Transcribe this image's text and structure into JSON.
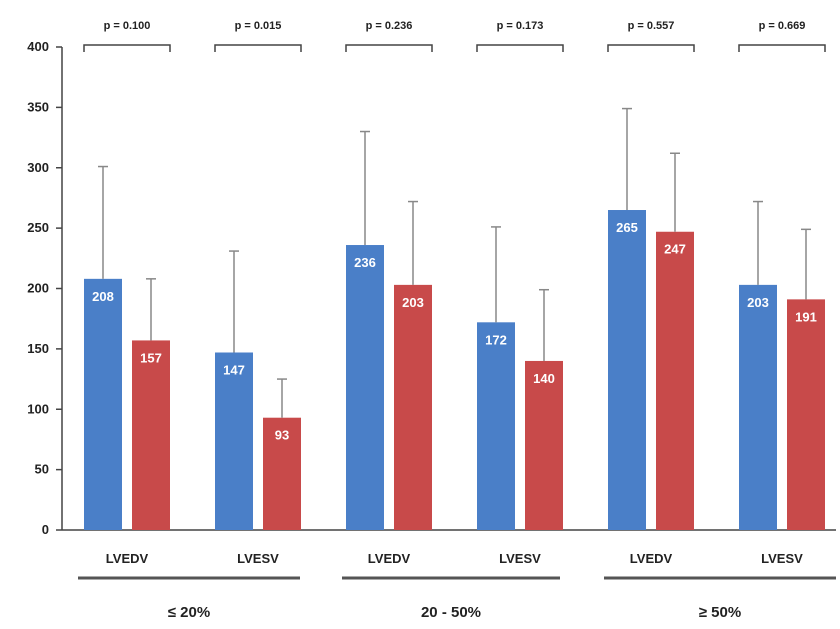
{
  "chart_data": {
    "type": "bar",
    "title": "",
    "xlabel": "",
    "ylabel": "",
    "ylim": [
      0,
      400
    ],
    "yticks": [
      0,
      50,
      100,
      150,
      200,
      250,
      300,
      350,
      400
    ],
    "grid": false,
    "groups": [
      "≤ 20%",
      "20 - 50%",
      "≥ 50%"
    ],
    "categories": [
      "LVEDV",
      "LVESV",
      "LVEDV",
      "LVESV",
      "LVEDV",
      "LVESV"
    ],
    "p_values": [
      "p = 0.100",
      "p = 0.015",
      "p = 0.236",
      "p = 0.173",
      "p = 0.557",
      "p = 0.669"
    ],
    "series": [
      {
        "color": "#4a7fc8",
        "values": [
          208,
          147,
          236,
          172,
          265,
          203
        ],
        "error_top": [
          301,
          231,
          330,
          251,
          349,
          272
        ]
      },
      {
        "color": "#c84a4a",
        "values": [
          157,
          93,
          203,
          140,
          247,
          191
        ],
        "error_top": [
          208,
          125,
          272,
          199,
          312,
          249
        ]
      }
    ],
    "value_labels": [
      [
        "208",
        "147",
        "236",
        "172",
        "265",
        "203"
      ],
      [
        "157",
        "93",
        "203",
        "140",
        "247",
        "191"
      ]
    ]
  }
}
